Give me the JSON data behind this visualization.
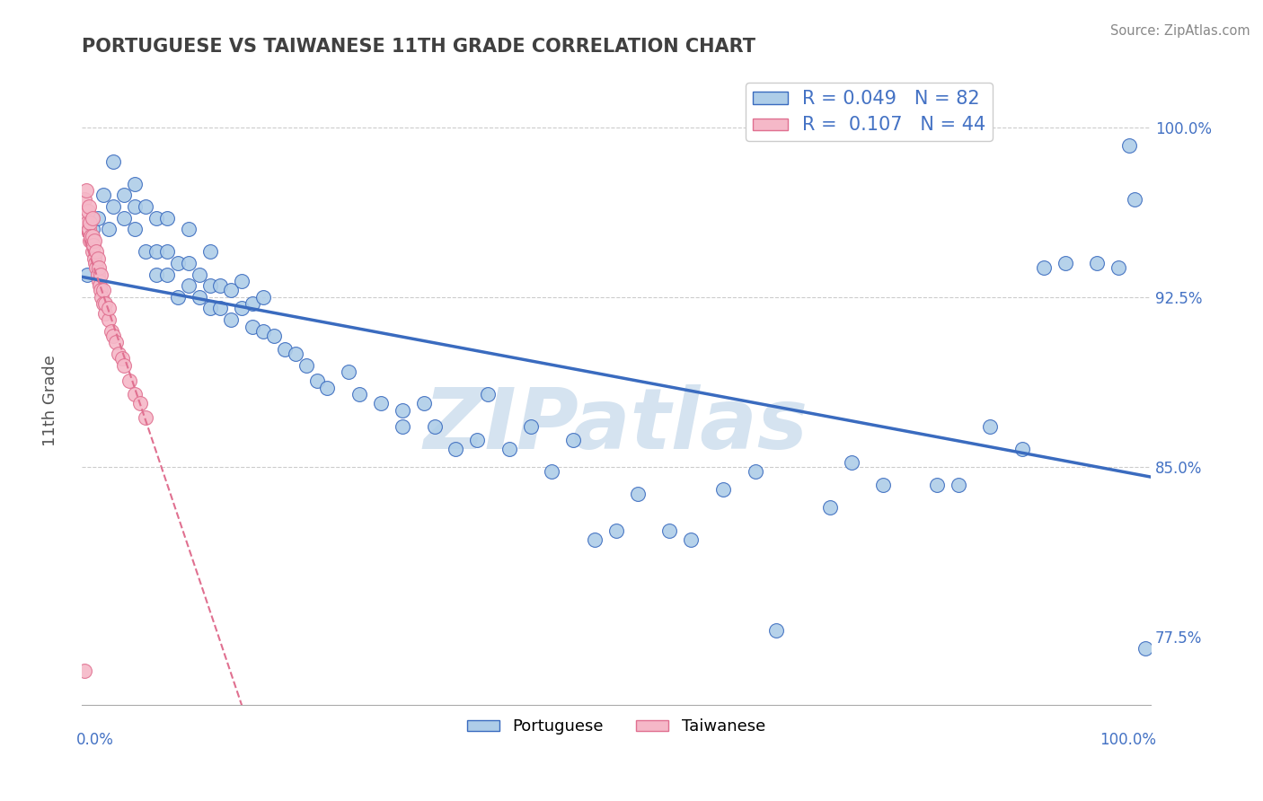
{
  "title": "PORTUGUESE VS TAIWANESE 11TH GRADE CORRELATION CHART",
  "source": "Source: ZipAtlas.com",
  "ylabel": "11th Grade",
  "xlim": [
    0.0,
    1.0
  ],
  "ylim": [
    0.745,
    1.025
  ],
  "yticks": [
    0.775,
    0.85,
    0.925,
    1.0
  ],
  "ytick_labels": [
    "77.5%",
    "85.0%",
    "92.5%",
    "100.0%"
  ],
  "blue_r": 0.049,
  "blue_n": 82,
  "pink_r": 0.107,
  "pink_n": 44,
  "blue_color": "#aecde8",
  "pink_color": "#f5b8c8",
  "blue_line_color": "#3a6bbf",
  "pink_line_color": "#e07090",
  "axis_color": "#4472c4",
  "watermark_color": "#d5e3f0",
  "blue_scatter_x": [
    0.005,
    0.01,
    0.015,
    0.02,
    0.025,
    0.03,
    0.03,
    0.04,
    0.04,
    0.05,
    0.05,
    0.05,
    0.06,
    0.06,
    0.07,
    0.07,
    0.07,
    0.08,
    0.08,
    0.08,
    0.09,
    0.09,
    0.1,
    0.1,
    0.1,
    0.11,
    0.11,
    0.12,
    0.12,
    0.12,
    0.13,
    0.13,
    0.14,
    0.14,
    0.15,
    0.15,
    0.16,
    0.16,
    0.17,
    0.17,
    0.18,
    0.19,
    0.2,
    0.21,
    0.22,
    0.23,
    0.25,
    0.26,
    0.28,
    0.3,
    0.3,
    0.32,
    0.33,
    0.35,
    0.37,
    0.38,
    0.4,
    0.42,
    0.44,
    0.46,
    0.48,
    0.5,
    0.52,
    0.55,
    0.57,
    0.6,
    0.63,
    0.65,
    0.7,
    0.72,
    0.75,
    0.8,
    0.82,
    0.85,
    0.88,
    0.9,
    0.92,
    0.95,
    0.97,
    0.98,
    0.985,
    0.995
  ],
  "blue_scatter_y": [
    0.935,
    0.955,
    0.96,
    0.97,
    0.955,
    0.965,
    0.985,
    0.96,
    0.97,
    0.955,
    0.965,
    0.975,
    0.945,
    0.965,
    0.935,
    0.945,
    0.96,
    0.935,
    0.945,
    0.96,
    0.925,
    0.94,
    0.93,
    0.94,
    0.955,
    0.925,
    0.935,
    0.92,
    0.93,
    0.945,
    0.92,
    0.93,
    0.915,
    0.928,
    0.92,
    0.932,
    0.912,
    0.922,
    0.91,
    0.925,
    0.908,
    0.902,
    0.9,
    0.895,
    0.888,
    0.885,
    0.892,
    0.882,
    0.878,
    0.875,
    0.868,
    0.878,
    0.868,
    0.858,
    0.862,
    0.882,
    0.858,
    0.868,
    0.848,
    0.862,
    0.818,
    0.822,
    0.838,
    0.822,
    0.818,
    0.84,
    0.848,
    0.778,
    0.832,
    0.852,
    0.842,
    0.842,
    0.842,
    0.868,
    0.858,
    0.938,
    0.94,
    0.94,
    0.938,
    0.992,
    0.968,
    0.77
  ],
  "pink_scatter_x": [
    0.003,
    0.003,
    0.004,
    0.005,
    0.006,
    0.007,
    0.007,
    0.008,
    0.008,
    0.009,
    0.01,
    0.01,
    0.01,
    0.011,
    0.012,
    0.012,
    0.013,
    0.014,
    0.014,
    0.015,
    0.015,
    0.016,
    0.016,
    0.017,
    0.018,
    0.018,
    0.019,
    0.02,
    0.02,
    0.022,
    0.022,
    0.025,
    0.025,
    0.028,
    0.03,
    0.032,
    0.035,
    0.038,
    0.04,
    0.045,
    0.05,
    0.055,
    0.06,
    0.003
  ],
  "pink_scatter_y": [
    0.96,
    0.968,
    0.972,
    0.958,
    0.963,
    0.955,
    0.965,
    0.95,
    0.958,
    0.952,
    0.945,
    0.952,
    0.96,
    0.948,
    0.942,
    0.95,
    0.94,
    0.938,
    0.945,
    0.935,
    0.942,
    0.932,
    0.938,
    0.93,
    0.928,
    0.935,
    0.925,
    0.922,
    0.928,
    0.918,
    0.922,
    0.915,
    0.92,
    0.91,
    0.908,
    0.905,
    0.9,
    0.898,
    0.895,
    0.888,
    0.882,
    0.878,
    0.872,
    0.76
  ]
}
